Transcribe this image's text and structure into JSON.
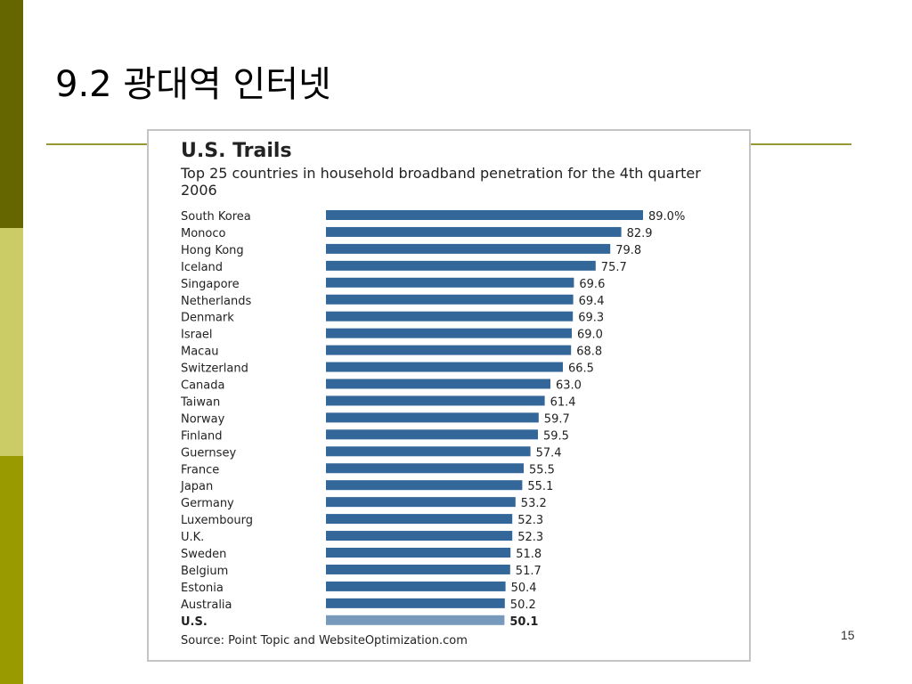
{
  "slide": {
    "title": "9.2 광대역 인터넷",
    "page_number": "15"
  },
  "colors": {
    "bar": "#336699",
    "highlight_bar": "#7799bb",
    "sidebar_dark": "#666600",
    "sidebar_light": "#cccc66",
    "sidebar_olive": "#999900"
  },
  "chart_data": {
    "type": "bar",
    "orientation": "horizontal",
    "title": "U.S. Trails",
    "subtitle": "Top 25 countries in household broadband penetration for the 4th quarter 2006",
    "source": "Source: Point Topic and WebsiteOptimization.com",
    "categories": [
      "South Korea",
      "Monoco",
      "Hong Kong",
      "Iceland",
      "Singapore",
      "Netherlands",
      "Denmark",
      "Israel",
      "Macau",
      "Switzerland",
      "Canada",
      "Taiwan",
      "Norway",
      "Finland",
      "Guernsey",
      "France",
      "Japan",
      "Germany",
      "Luxembourg",
      "U.K.",
      "Sweden",
      "Belgium",
      "Estonia",
      "Australia",
      "U.S."
    ],
    "values": [
      89.0,
      82.9,
      79.8,
      75.7,
      69.6,
      69.4,
      69.3,
      69.0,
      68.8,
      66.5,
      63.0,
      61.4,
      59.7,
      59.5,
      57.4,
      55.5,
      55.1,
      53.2,
      52.3,
      52.3,
      51.8,
      51.7,
      50.4,
      50.2,
      50.1
    ],
    "value_labels": [
      "89.0%",
      "82.9",
      "79.8",
      "75.7",
      "69.6",
      "69.4",
      "69.3",
      "69.0",
      "68.8",
      "66.5",
      "63.0",
      "61.4",
      "59.7",
      "59.5",
      "57.4",
      "55.5",
      "55.1",
      "53.2",
      "52.3",
      "52.3",
      "51.8",
      "51.7",
      "50.4",
      "50.2",
      "50.1"
    ],
    "highlight": "U.S.",
    "xlim": [
      0,
      89.0
    ],
    "grid": false,
    "legend": "none"
  }
}
